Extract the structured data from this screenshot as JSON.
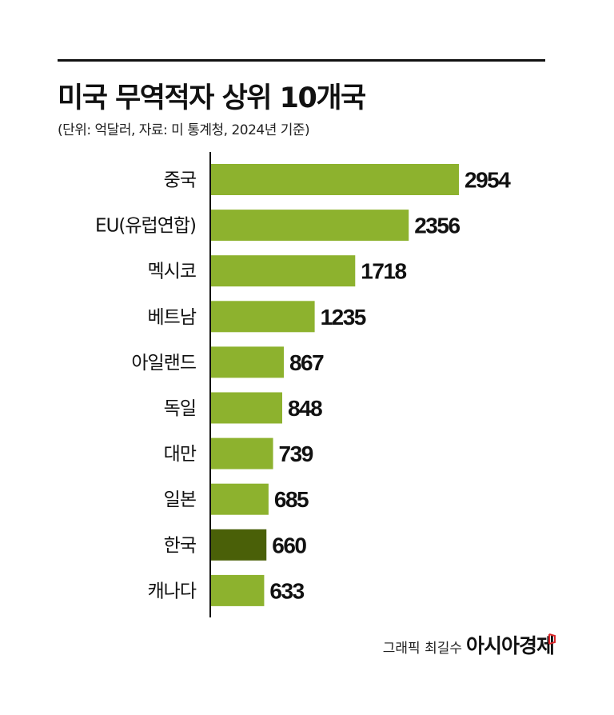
{
  "title": "미국 무역적자 상위 10개국",
  "subtitle": "(단위: 억달러, 자료: 미 통계청, 2024년 기준)",
  "footer": {
    "credit": "그래픽 최길수",
    "logo": "아시아경제"
  },
  "colors": {
    "bar": "#8db22e",
    "highlight": "#4a6008",
    "axis": "#111111",
    "logo_mark": "#d9262a"
  },
  "chart_data": {
    "type": "bar",
    "orientation": "horizontal",
    "categories": [
      "중국",
      "EU(유럽연합)",
      "멕시코",
      "베트남",
      "아일랜드",
      "독일",
      "대만",
      "일본",
      "한국",
      "캐나다"
    ],
    "values": [
      2954,
      2356,
      1718,
      1235,
      867,
      848,
      739,
      685,
      660,
      633
    ],
    "highlight": "한국",
    "title": "미국 무역적자 상위 10개국",
    "xlabel": "",
    "ylabel": "",
    "grid": false,
    "legend": "none"
  }
}
